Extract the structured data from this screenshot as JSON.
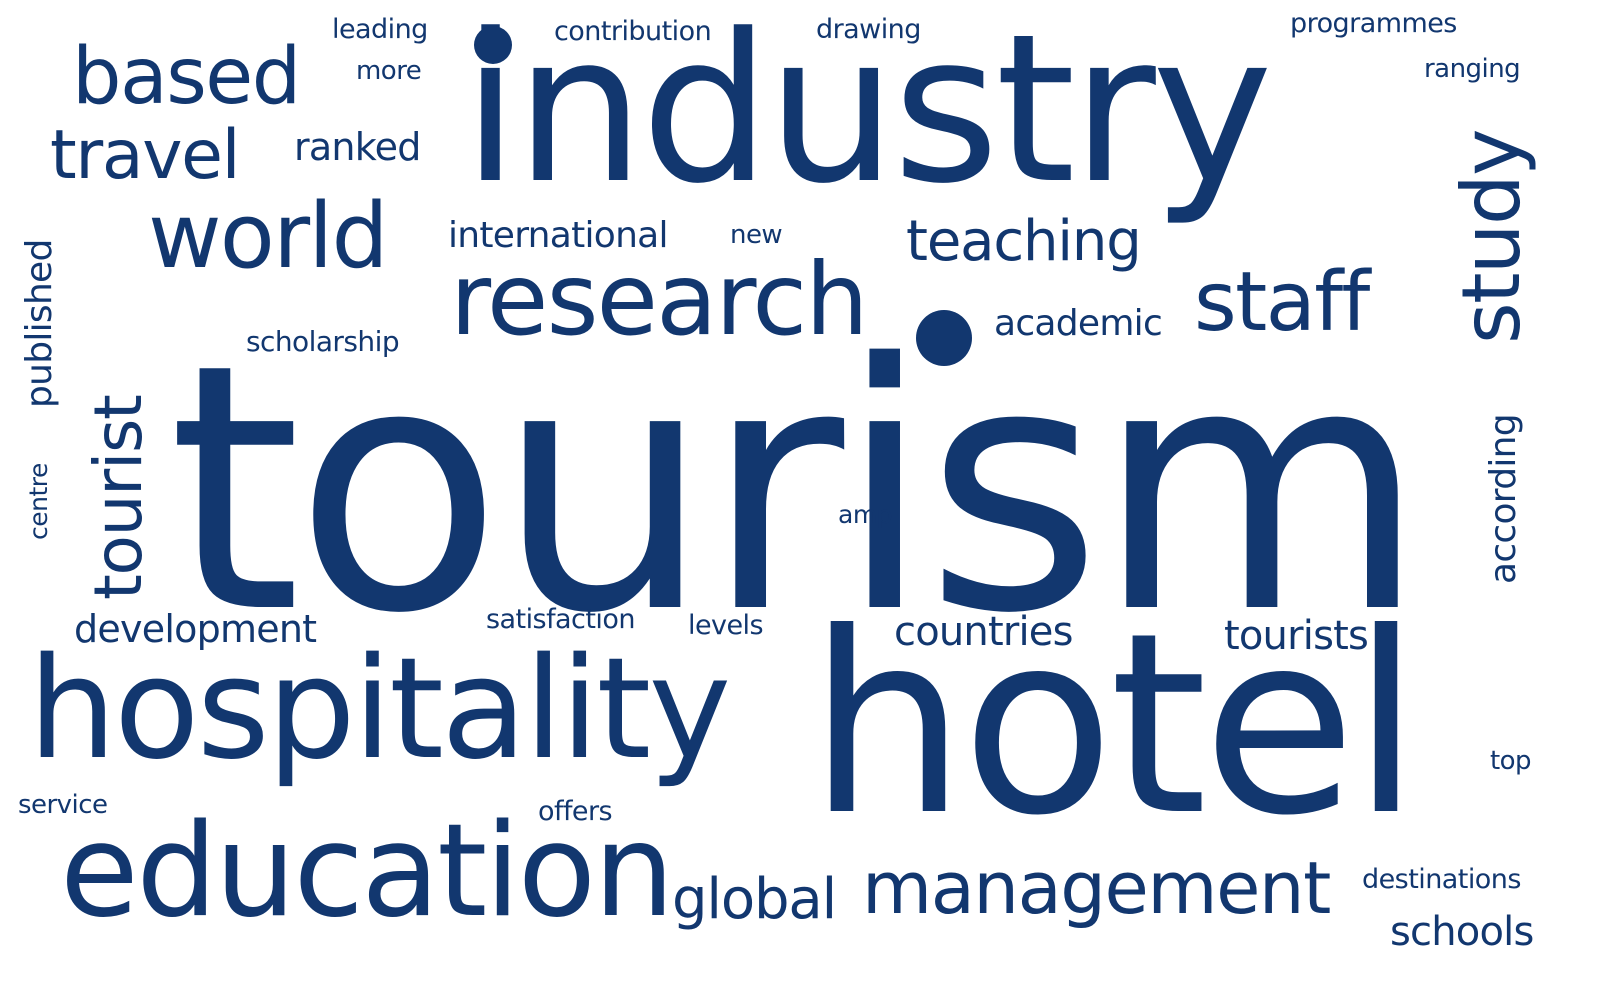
{
  "theme": {
    "text_color": "#12376f",
    "background": "#ffffff"
  },
  "words": {
    "tourism": "tourism",
    "hotel": "hotel",
    "industry": "industry",
    "hospitality": "hospitality",
    "education": "education",
    "research": "research",
    "management": "management",
    "world": "world",
    "based": "based",
    "travel": "travel",
    "staff": "staff",
    "study": "study",
    "tourist": "tourist",
    "teaching": "teaching",
    "global": "global",
    "development": "development",
    "countries": "countries",
    "tourists": "tourists",
    "international": "international",
    "academic": "academic",
    "ranked": "ranked",
    "published": "published",
    "according": "according",
    "schools": "schools",
    "scholarship": "scholarship",
    "leading": "leading",
    "contribution": "contribution",
    "drawing": "drawing",
    "programmes": "programmes",
    "more": "more",
    "ranging": "ranging",
    "new": "new",
    "satisfaction": "satisfaction",
    "levels": "levels",
    "offers": "offers",
    "service": "service",
    "top": "top",
    "destinations": "destinations",
    "amp": "amp",
    "centre": "centre"
  }
}
